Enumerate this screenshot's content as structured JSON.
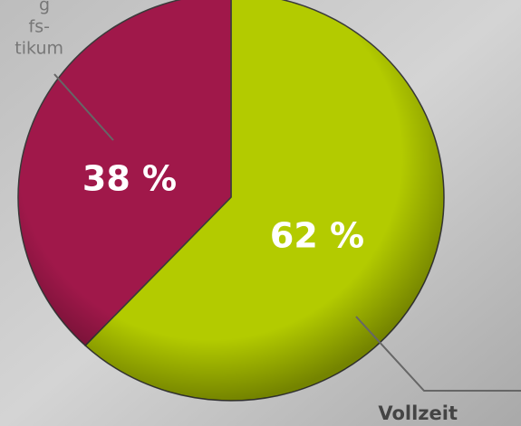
{
  "chart_data": {
    "type": "pie",
    "categories": [
      [
        "Vollzeit"
      ],
      [
        "g",
        "fs-",
        "tikum"
      ]
    ],
    "values": [
      62,
      38
    ],
    "value_labels": [
      "62 %",
      "38 %"
    ],
    "colors": [
      "#b3cb00",
      "#a0184a"
    ]
  }
}
